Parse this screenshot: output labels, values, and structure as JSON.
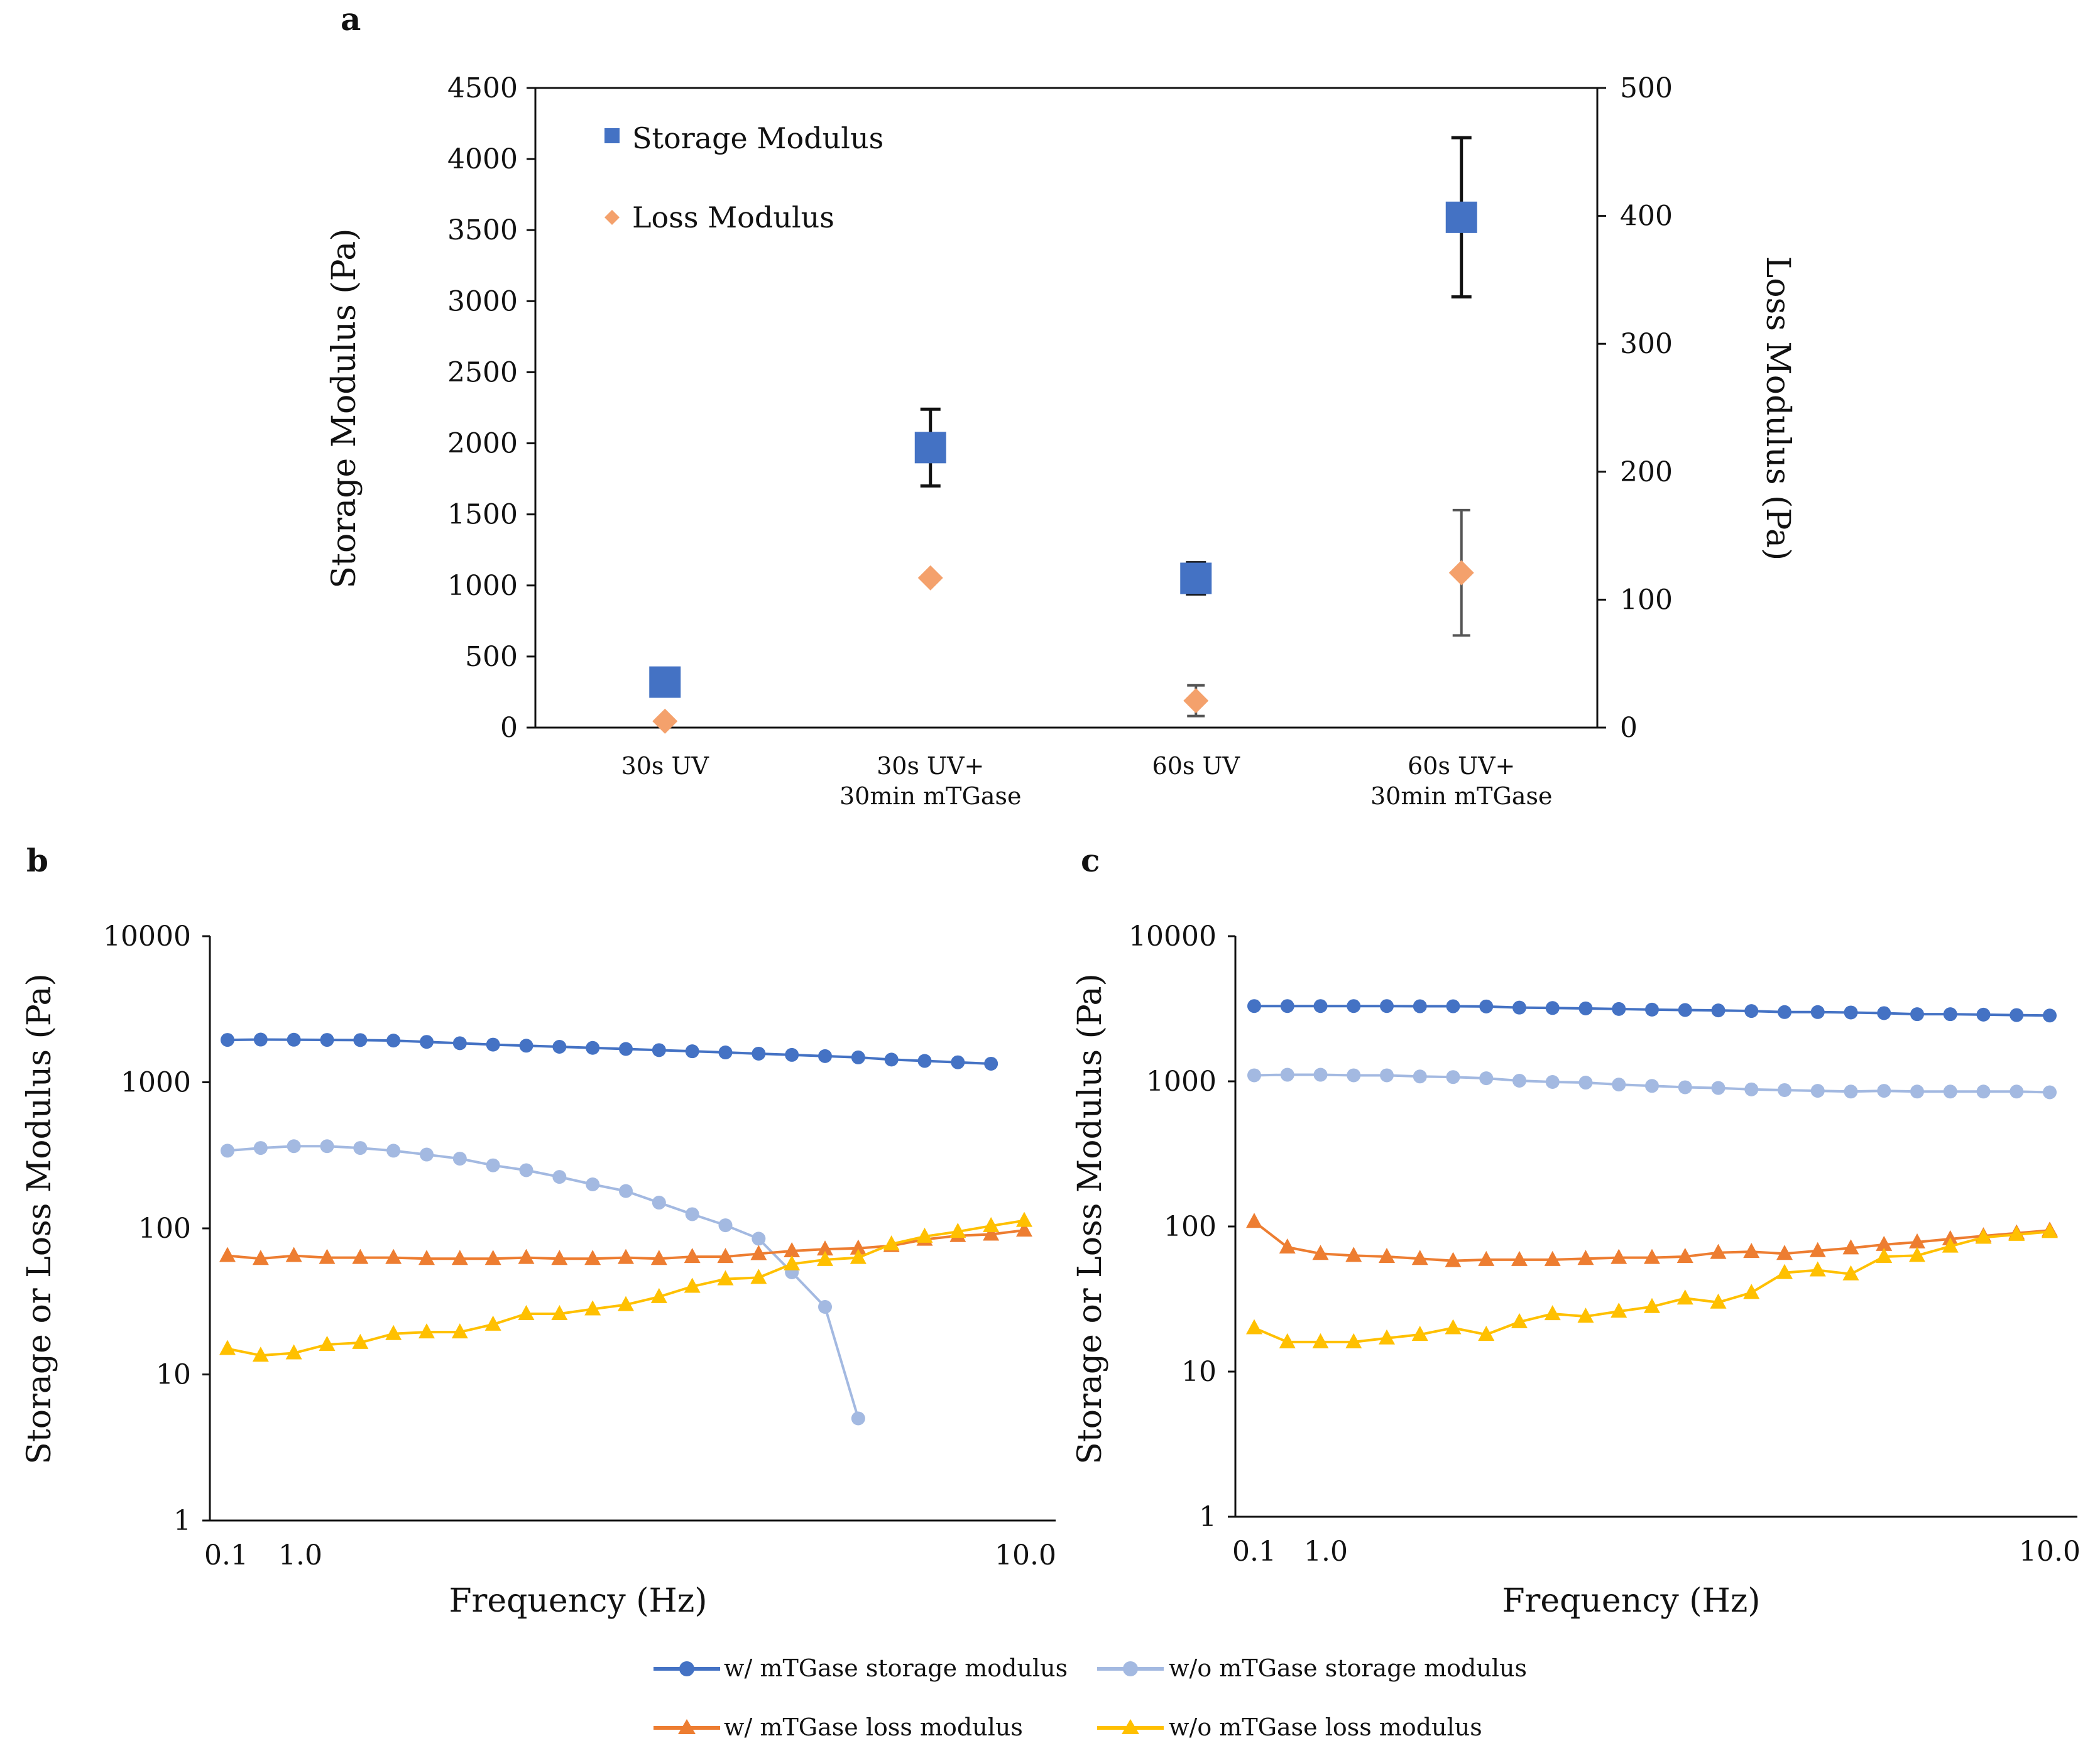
{
  "chart_data": [
    {
      "panel": "a",
      "type": "scatter",
      "title": "",
      "categories": [
        "30s UV",
        "30s UV+\n30min mTGase",
        "60s UV",
        "60s UV+\n30min mTGase"
      ],
      "ylabel": "Storage Modulus (Pa)",
      "y2label": "Loss Modulus (Pa)",
      "ylim": [
        0,
        4500
      ],
      "yticks": [
        "0",
        "500",
        "1000",
        "1500",
        "2000",
        "2500",
        "3000",
        "3500",
        "4000",
        "4500"
      ],
      "y2lim": [
        0,
        500
      ],
      "y2ticks": [
        "0",
        "100",
        "200",
        "300",
        "400",
        "500"
      ],
      "legend_position": "top-left",
      "series": [
        {
          "name": "Storage Modulus",
          "axis": "left",
          "marker": "square",
          "color": "#4472C4",
          "values": [
            320,
            1970,
            1050,
            3590
          ],
          "errors": [
            0,
            270,
            110,
            560
          ]
        },
        {
          "name": "Loss Modulus",
          "axis": "right",
          "marker": "diamond",
          "color": "#F4A16C",
          "values": [
            5,
            117,
            21,
            121
          ],
          "errors": [
            0,
            0,
            12,
            49
          ]
        }
      ]
    },
    {
      "panel": "b",
      "type": "line",
      "xlabel": "Frequency (Hz)",
      "ylabel": "Storage or Loss Modulus (Pa)",
      "yscale": "log",
      "ylim": [
        1,
        10000
      ],
      "yticks": [
        "1",
        "10",
        "100",
        "1000",
        "10000"
      ],
      "xtick_labels": [
        "0.1",
        "1.0",
        "10.0"
      ],
      "series": [
        {
          "name": "w/ mTGase storage modulus",
          "values": [
            1950,
            1960,
            1955,
            1950,
            1945,
            1930,
            1890,
            1850,
            1810,
            1780,
            1750,
            1720,
            1690,
            1660,
            1630,
            1600,
            1570,
            1540,
            1510,
            1480,
            1430,
            1400,
            1370,
            1340
          ]
        },
        {
          "name": "w/o mTGase storage modulus",
          "values": [
            340,
            355,
            365,
            365,
            355,
            340,
            320,
            300,
            270,
            250,
            225,
            200,
            180,
            150,
            125,
            105,
            85,
            50,
            29,
            5
          ]
        },
        {
          "name": "w/ mTGase loss modulus",
          "values": [
            65,
            62,
            65,
            63,
            63,
            63,
            62,
            62,
            62,
            63,
            62,
            62,
            63,
            62,
            64,
            64,
            67,
            70,
            72,
            73,
            76,
            84,
            89,
            91,
            97
          ]
        },
        {
          "name": "w/o mTGase loss modulus",
          "values": [
            15,
            13.5,
            14,
            16,
            16.5,
            19,
            19.5,
            19.5,
            22,
            26,
            26,
            28,
            30,
            34,
            40,
            45,
            46,
            57,
            61,
            63,
            78,
            88,
            95,
            104,
            113
          ]
        }
      ]
    },
    {
      "panel": "c",
      "type": "line",
      "xlabel": "Frequency (Hz)",
      "ylabel": "Storage or Loss Modulus (Pa)",
      "yscale": "log",
      "ylim": [
        1,
        10000
      ],
      "yticks": [
        "1",
        "10",
        "100",
        "1000",
        "10000"
      ],
      "xtick_labels": [
        "0.1",
        "1.0",
        "10.0"
      ],
      "series": [
        {
          "name": "w/ mTGase storage modulus",
          "values": [
            3300,
            3300,
            3300,
            3300,
            3300,
            3290,
            3290,
            3280,
            3220,
            3200,
            3180,
            3150,
            3120,
            3100,
            3080,
            3050,
            3000,
            3000,
            2980,
            2950,
            2900,
            2900,
            2880,
            2860,
            2840
          ]
        },
        {
          "name": "w/o mTGase storage modulus",
          "values": [
            1100,
            1110,
            1110,
            1100,
            1100,
            1080,
            1070,
            1050,
            1010,
            990,
            980,
            950,
            930,
            910,
            900,
            880,
            870,
            860,
            850,
            860,
            850,
            850,
            850,
            850,
            840
          ]
        },
        {
          "name": "w/ mTGase loss modulus",
          "values": [
            108,
            72,
            65,
            63,
            62,
            60,
            58,
            59,
            59,
            59,
            60,
            61,
            61,
            62,
            66,
            67,
            65,
            68,
            71,
            75,
            78,
            82,
            86,
            90,
            94
          ]
        },
        {
          "name": "w/o mTGase loss modulus",
          "values": [
            20,
            16,
            16,
            16,
            17,
            18,
            20,
            18,
            22,
            25,
            24,
            26,
            28,
            32,
            30,
            35,
            48,
            50,
            47,
            62,
            63,
            73,
            84,
            88,
            92
          ]
        }
      ]
    }
  ],
  "panels": {
    "a": "a",
    "b": "b",
    "c": "c"
  },
  "legend": {
    "items": [
      {
        "label": "w/ mTGase storage modulus",
        "color": "#4472C4",
        "marker": "circle"
      },
      {
        "label": "w/o mTGase storage modulus",
        "color": "#A3B9E1",
        "marker": "circle"
      },
      {
        "label": "w/ mTGase loss modulus",
        "color": "#ED7D31",
        "marker": "triangle"
      },
      {
        "label": "w/o mTGase loss modulus",
        "color": "#FFC000",
        "marker": "triangle"
      }
    ]
  },
  "colors": {
    "storage_square": "#4472C4",
    "loss_diamond": "#F4A16C",
    "error_bar": "#111111"
  }
}
